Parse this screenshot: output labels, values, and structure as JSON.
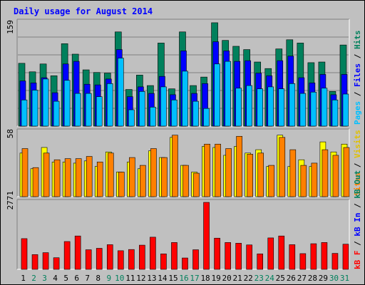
{
  "chart_data": [
    {
      "type": "bar",
      "title": "Daily usage for August 2014",
      "panel": "top",
      "ytick": "159",
      "ylim": [
        0,
        159
      ],
      "categories": [
        "1",
        "2",
        "3",
        "4",
        "5",
        "6",
        "7",
        "8",
        "9",
        "10",
        "11",
        "12",
        "13",
        "14",
        "15",
        "16",
        "17",
        "18",
        "19",
        "20",
        "21",
        "22",
        "23",
        "24",
        "25",
        "26",
        "27",
        "28",
        "29",
        "30",
        "31"
      ],
      "side_label": [
        "Pages",
        " / ",
        "Files",
        " / ",
        "Hits"
      ],
      "series": [
        {
          "name": "Hits",
          "color": "#00805c",
          "values": [
            96,
            83,
            95,
            77,
            126,
            110,
            86,
            82,
            81,
            144,
            56,
            78,
            62,
            127,
            57,
            144,
            62,
            75,
            158,
            131,
            122,
            117,
            98,
            88,
            118,
            132,
            127,
            97,
            98,
            53,
            124
          ]
        },
        {
          "name": "Files",
          "color": "#0000ff",
          "values": [
            69,
            66,
            74,
            51,
            95,
            99,
            64,
            63,
            72,
            117,
            45,
            60,
            50,
            76,
            48,
            115,
            50,
            65,
            129,
            115,
            99,
            100,
            81,
            77,
            100,
            107,
            74,
            66,
            79,
            48,
            79
          ]
        },
        {
          "name": "Pages",
          "color": "#00bfff",
          "values": [
            40,
            55,
            72,
            38,
            70,
            50,
            50,
            45,
            65,
            104,
            25,
            53,
            29,
            60,
            40,
            84,
            38,
            27,
            95,
            99,
            58,
            62,
            57,
            60,
            57,
            65,
            50,
            52,
            58,
            40,
            49
          ]
        }
      ]
    },
    {
      "type": "bar",
      "panel": "middle",
      "ytick": "58",
      "ylim": [
        0,
        58
      ],
      "side_label": [
        "Sites",
        " / ",
        "Visits"
      ],
      "series": [
        {
          "name": "Visits",
          "color": "#ffff00",
          "values": [
            39,
            25,
            44,
            31,
            31,
            30,
            32,
            27,
            40,
            22,
            31,
            25,
            41,
            35,
            53,
            28,
            22,
            45,
            44,
            37,
            45,
            39,
            42,
            27,
            55,
            27,
            33,
            27,
            49,
            40,
            47
          ]
        },
        {
          "name": "Sites",
          "color": "#ff8000",
          "values": [
            43,
            26,
            39,
            33,
            34,
            34,
            36,
            31,
            39,
            22,
            35,
            28,
            43,
            35,
            55,
            28,
            21,
            47,
            47,
            43,
            54,
            38,
            39,
            28,
            53,
            42,
            28,
            30,
            42,
            37,
            44
          ]
        }
      ]
    },
    {
      "type": "bar",
      "panel": "bottom",
      "ytick": "2771",
      "ylim": [
        0,
        2771
      ],
      "side_label": [
        "kB F",
        " / ",
        "kB In",
        " / ",
        "kB Out"
      ],
      "series": [
        {
          "name": "kB F",
          "color": "#ff0000",
          "values": [
            1270,
            610,
            690,
            480,
            1150,
            1380,
            810,
            870,
            1020,
            770,
            820,
            1000,
            1330,
            640,
            1110,
            470,
            810,
            2771,
            1290,
            1110,
            1080,
            1010,
            640,
            1300,
            1380,
            1020,
            650,
            1060,
            1110,
            660,
            1040
          ]
        }
      ]
    }
  ]
}
